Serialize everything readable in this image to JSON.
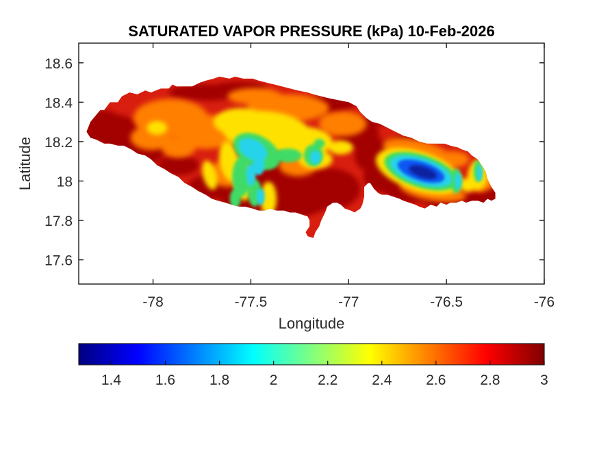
{
  "figure": {
    "title": "SATURATED VAPOR PRESSURE (kPa) 10-Feb-2026"
  },
  "chart_data": {
    "type": "heatmap",
    "subtype": "filled-contour-geographic-map",
    "region": "Jamaica",
    "units": "kPa",
    "xlabel": "Longitude",
    "ylabel": "Latitude",
    "x_range": [
      -78.38,
      -76.0
    ],
    "y_range": [
      17.477,
      18.7
    ],
    "x_ticks": [
      {
        "v": -78,
        "label": "-78"
      },
      {
        "v": -77.5,
        "label": "-77.5"
      },
      {
        "v": -77,
        "label": "-77"
      },
      {
        "v": -76.5,
        "label": "-76.5"
      },
      {
        "v": -76,
        "label": "-76"
      }
    ],
    "y_ticks": [
      {
        "v": 18.6,
        "label": "18.6"
      },
      {
        "v": 18.4,
        "label": "18.4"
      },
      {
        "v": 18.2,
        "label": "18.2"
      },
      {
        "v": 18,
        "label": "18"
      },
      {
        "v": 17.8,
        "label": "17.8"
      },
      {
        "v": 17.6,
        "label": "17.6"
      }
    ],
    "colorbar": {
      "orientation": "horizontal",
      "range": [
        1.28,
        3.0
      ],
      "colormap": "jet",
      "ticks": [
        {
          "v": 1.4,
          "label": "1.4"
        },
        {
          "v": 1.6,
          "label": "1.6"
        },
        {
          "v": 1.8,
          "label": "1.8"
        },
        {
          "v": 2,
          "label": "2"
        },
        {
          "v": 2.2,
          "label": "2.2"
        },
        {
          "v": 2.4,
          "label": "2.4"
        },
        {
          "v": 2.6,
          "label": "2.6"
        },
        {
          "v": 2.8,
          "label": "2.8"
        },
        {
          "v": 3,
          "label": "3"
        }
      ],
      "stops": [
        {
          "f": 0,
          "c": "#000080"
        },
        {
          "f": 0.125,
          "c": "#0000ff"
        },
        {
          "f": 0.25,
          "c": "#0080ff"
        },
        {
          "f": 0.375,
          "c": "#00ffff"
        },
        {
          "f": 0.5,
          "c": "#80ff80"
        },
        {
          "f": 0.625,
          "c": "#ffff00"
        },
        {
          "f": 0.75,
          "c": "#ff8000"
        },
        {
          "f": 0.875,
          "c": "#ff0000"
        },
        {
          "f": 1,
          "c": "#800000"
        }
      ]
    },
    "field_summary": {
      "high_values_kPa": "2.8-3.0 along most coasts and lowlands (dark red)",
      "low_value_kPa": "about 1.3 at the Blue Mountains near lon -76.6, lat 18.05 (dark blue core)",
      "mid_values": "2.0-2.4 (yellow-green) over the west-central interior uplands"
    },
    "base_color": "#d81e0f",
    "outline": [
      [
        -78.34,
        18.25
      ],
      [
        -78.32,
        18.3
      ],
      [
        -78.27,
        18.36
      ],
      [
        -78.25,
        18.36
      ],
      [
        -78.22,
        18.4
      ],
      [
        -78.18,
        18.4
      ],
      [
        -78.16,
        18.43
      ],
      [
        -78.12,
        18.45
      ],
      [
        -78.08,
        18.44
      ],
      [
        -78.04,
        18.46
      ],
      [
        -78.01,
        18.45
      ],
      [
        -77.96,
        18.47
      ],
      [
        -77.92,
        18.47
      ],
      [
        -77.9,
        18.49
      ],
      [
        -77.88,
        18.48
      ],
      [
        -77.84,
        18.48
      ],
      [
        -77.8,
        18.48
      ],
      [
        -77.76,
        18.5
      ],
      [
        -77.73,
        18.51
      ],
      [
        -77.69,
        18.52
      ],
      [
        -77.66,
        18.53
      ],
      [
        -77.61,
        18.52
      ],
      [
        -77.58,
        18.53
      ],
      [
        -77.54,
        18.52
      ],
      [
        -77.49,
        18.52
      ],
      [
        -77.46,
        18.51
      ],
      [
        -77.42,
        18.5
      ],
      [
        -77.38,
        18.49
      ],
      [
        -77.34,
        18.48
      ],
      [
        -77.3,
        18.47
      ],
      [
        -77.26,
        18.46
      ],
      [
        -77.21,
        18.45
      ],
      [
        -77.18,
        18.44
      ],
      [
        -77.14,
        18.43
      ],
      [
        -77.1,
        18.42
      ],
      [
        -77.05,
        18.41
      ],
      [
        -77.0,
        18.4
      ],
      [
        -76.96,
        18.38
      ],
      [
        -76.94,
        18.35
      ],
      [
        -76.91,
        18.32
      ],
      [
        -76.88,
        18.3
      ],
      [
        -76.84,
        18.29
      ],
      [
        -76.8,
        18.27
      ],
      [
        -76.76,
        18.25
      ],
      [
        -76.72,
        18.23
      ],
      [
        -76.68,
        18.22
      ],
      [
        -76.64,
        18.2
      ],
      [
        -76.6,
        18.19
      ],
      [
        -76.57,
        18.19
      ],
      [
        -76.54,
        18.19
      ],
      [
        -76.51,
        18.19
      ],
      [
        -76.48,
        18.18
      ],
      [
        -76.44,
        18.17
      ],
      [
        -76.42,
        18.16
      ],
      [
        -76.39,
        18.15
      ],
      [
        -76.37,
        18.13
      ],
      [
        -76.34,
        18.11
      ],
      [
        -76.32,
        18.08
      ],
      [
        -76.3,
        18.05
      ],
      [
        -76.29,
        18.01
      ],
      [
        -76.27,
        17.97
      ],
      [
        -76.25,
        17.94
      ],
      [
        -76.25,
        17.91
      ],
      [
        -76.27,
        17.9
      ],
      [
        -76.29,
        17.91
      ],
      [
        -76.31,
        17.89
      ],
      [
        -76.34,
        17.9
      ],
      [
        -76.37,
        17.9
      ],
      [
        -76.4,
        17.89
      ],
      [
        -76.42,
        17.9
      ],
      [
        -76.45,
        17.89
      ],
      [
        -76.48,
        17.89
      ],
      [
        -76.5,
        17.88
      ],
      [
        -76.53,
        17.89
      ],
      [
        -76.55,
        17.87
      ],
      [
        -76.58,
        17.88
      ],
      [
        -76.61,
        17.86
      ],
      [
        -76.64,
        17.87
      ],
      [
        -76.66,
        17.88
      ],
      [
        -76.69,
        17.89
      ],
      [
        -76.72,
        17.9
      ],
      [
        -76.74,
        17.91
      ],
      [
        -76.77,
        17.92
      ],
      [
        -76.8,
        17.93
      ],
      [
        -76.83,
        17.93
      ],
      [
        -76.85,
        17.94
      ],
      [
        -76.87,
        17.96
      ],
      [
        -76.89,
        17.99
      ],
      [
        -76.9,
        17.99
      ],
      [
        -76.92,
        17.97
      ],
      [
        -76.92,
        17.92
      ],
      [
        -76.93,
        17.88
      ],
      [
        -76.94,
        17.86
      ],
      [
        -76.97,
        17.84
      ],
      [
        -76.99,
        17.85
      ],
      [
        -77.02,
        17.86
      ],
      [
        -77.04,
        17.88
      ],
      [
        -77.06,
        17.89
      ],
      [
        -77.08,
        17.89
      ],
      [
        -77.11,
        17.87
      ],
      [
        -77.12,
        17.84
      ],
      [
        -77.14,
        17.8
      ],
      [
        -77.15,
        17.77
      ],
      [
        -77.17,
        17.74
      ],
      [
        -77.18,
        17.71
      ],
      [
        -77.21,
        17.72
      ],
      [
        -77.22,
        17.74
      ],
      [
        -77.2,
        17.77
      ],
      [
        -77.2,
        17.8
      ],
      [
        -77.21,
        17.82
      ],
      [
        -77.24,
        17.83
      ],
      [
        -77.27,
        17.84
      ],
      [
        -77.3,
        17.84
      ],
      [
        -77.33,
        17.85
      ],
      [
        -77.37,
        17.85
      ],
      [
        -77.4,
        17.86
      ],
      [
        -77.43,
        17.85
      ],
      [
        -77.46,
        17.85
      ],
      [
        -77.49,
        17.86
      ],
      [
        -77.53,
        17.87
      ],
      [
        -77.56,
        17.87
      ],
      [
        -77.6,
        17.88
      ],
      [
        -77.63,
        17.89
      ],
      [
        -77.67,
        17.9
      ],
      [
        -77.7,
        17.91
      ],
      [
        -77.73,
        17.93
      ],
      [
        -77.77,
        17.95
      ],
      [
        -77.8,
        17.97
      ],
      [
        -77.84,
        17.99
      ],
      [
        -77.87,
        18.02
      ],
      [
        -77.91,
        18.04
      ],
      [
        -77.94,
        18.06
      ],
      [
        -77.98,
        18.08
      ],
      [
        -78.01,
        18.11
      ],
      [
        -78.04,
        18.13
      ],
      [
        -78.08,
        18.14
      ],
      [
        -78.11,
        18.16
      ],
      [
        -78.15,
        18.18
      ],
      [
        -78.18,
        18.18
      ],
      [
        -78.22,
        18.19
      ],
      [
        -78.25,
        18.19
      ],
      [
        -78.29,
        18.21
      ],
      [
        -78.32,
        18.22
      ]
    ],
    "field_layers": [
      {
        "name": "dark-red",
        "color": "#a30000",
        "blur": 4,
        "blobs": [
          [
            -78.21,
            18.24,
            0.15,
            0.1,
            0
          ],
          [
            -78.26,
            18.31,
            0.09,
            0.05,
            0
          ],
          [
            -78.08,
            18.14,
            0.16,
            0.08,
            20
          ],
          [
            -77.73,
            18.45,
            0.19,
            0.042,
            0
          ],
          [
            -77.56,
            18.47,
            0.14,
            0.035,
            0
          ],
          [
            -77.1,
            18.39,
            0.16,
            0.05,
            10
          ],
          [
            -76.95,
            18.24,
            0.105,
            0.08,
            0
          ],
          [
            -76.87,
            18.13,
            0.1,
            0.09,
            0
          ],
          [
            -76.82,
            18.02,
            0.105,
            0.078,
            0
          ],
          [
            -77.31,
            17.95,
            0.245,
            0.14,
            0
          ],
          [
            -77.1,
            17.96,
            0.16,
            0.105,
            0
          ],
          [
            -77.52,
            17.92,
            0.14,
            0.07,
            0
          ],
          [
            -77.7,
            17.97,
            0.122,
            0.063,
            0
          ],
          [
            -77.87,
            18.08,
            0.105,
            0.052,
            0
          ],
          [
            -76.68,
            17.94,
            0.122,
            0.052,
            0
          ],
          [
            -76.51,
            17.9,
            0.105,
            0.042,
            0
          ],
          [
            -76.33,
            17.91,
            0.087,
            0.035,
            0
          ],
          [
            -76.74,
            17.97,
            0.105,
            0.049,
            0
          ],
          [
            -76.27,
            17.94,
            0.042,
            0.035,
            0
          ],
          [
            -76.68,
            18.21,
            0.14,
            0.038,
            15
          ],
          [
            -76.82,
            18.33,
            0.105,
            0.049,
            0
          ],
          [
            -77.3,
            18.07,
            0.112,
            0.056,
            -25
          ],
          [
            -77.19,
            18.0,
            0.087,
            0.049,
            0
          ]
        ]
      },
      {
        "name": "orange",
        "color": "#ff7f00",
        "blur": 4,
        "blobs": [
          [
            -77.91,
            18.32,
            0.19,
            0.097,
            0
          ],
          [
            -77.73,
            18.25,
            0.157,
            0.087,
            0
          ],
          [
            -78.01,
            18.22,
            0.105,
            0.063,
            0
          ],
          [
            -77.31,
            18.37,
            0.21,
            0.07,
            0
          ],
          [
            -77.48,
            18.43,
            0.14,
            0.042,
            0
          ],
          [
            -77.03,
            18.29,
            0.122,
            0.063,
            0
          ],
          [
            -77.62,
            18.04,
            0.087,
            0.07,
            0
          ],
          [
            -77.26,
            18.08,
            0.098,
            0.056,
            0
          ],
          [
            -76.64,
            18.14,
            0.19,
            0.065,
            -15
          ],
          [
            -76.57,
            17.95,
            0.17,
            0.05,
            -10
          ],
          [
            -76.32,
            18.01,
            0.07,
            0.063,
            0
          ],
          [
            -76.47,
            18.11,
            0.087,
            0.042,
            0
          ],
          [
            -77.87,
            18.17,
            0.087,
            0.052,
            0
          ]
        ]
      },
      {
        "name": "yellow",
        "color": "#ffe100",
        "blur": 3.5,
        "blobs": [
          [
            -77.42,
            18.25,
            0.227,
            0.104,
            -5
          ],
          [
            -77.55,
            18.3,
            0.14,
            0.07,
            0
          ],
          [
            -77.24,
            18.2,
            0.157,
            0.076,
            0
          ],
          [
            -77.61,
            18.1,
            0.049,
            0.104,
            10
          ],
          [
            -77.54,
            18.01,
            0.05,
            0.11,
            5
          ],
          [
            -77.71,
            18.03,
            0.035,
            0.076,
            15
          ],
          [
            -77.41,
            17.91,
            0.042,
            0.087,
            0
          ],
          [
            -77.17,
            18.11,
            0.087,
            0.049,
            0
          ],
          [
            -77.98,
            18.27,
            0.052,
            0.035,
            0
          ],
          [
            -76.64,
            18.05,
            0.23,
            0.1,
            -18
          ],
          [
            -76.34,
            18.03,
            0.049,
            0.076,
            0
          ],
          [
            -76.39,
            17.98,
            0.042,
            0.035,
            0
          ],
          [
            -77.04,
            18.17,
            0.063,
            0.035,
            0
          ]
        ]
      },
      {
        "name": "green",
        "color": "#3fdb66",
        "blur": 2.5,
        "blobs": [
          [
            -77.47,
            18.15,
            0.13,
            0.08,
            -30
          ],
          [
            -77.55,
            18.02,
            0.045,
            0.1,
            0
          ],
          [
            -77.48,
            17.94,
            0.035,
            0.07,
            0
          ],
          [
            -77.58,
            17.91,
            0.028,
            0.049,
            0
          ],
          [
            -77.31,
            18.13,
            0.07,
            0.035,
            0
          ],
          [
            -76.63,
            18.05,
            0.195,
            0.082,
            -18
          ],
          [
            -76.45,
            18.0,
            0.028,
            0.063,
            0
          ],
          [
            -76.34,
            18.05,
            0.021,
            0.056,
            0
          ],
          [
            -77.18,
            18.13,
            0.049,
            0.056,
            0
          ],
          [
            -77.15,
            18.19,
            0.028,
            0.024,
            0
          ]
        ]
      },
      {
        "name": "cyan",
        "color": "#27d3ea",
        "blur": 2.2,
        "blobs": [
          [
            -77.49,
            18.16,
            0.08,
            0.05,
            -30
          ],
          [
            -77.5,
            18.03,
            0.024,
            0.056,
            0
          ],
          [
            -77.46,
            18.08,
            0.03,
            0.05,
            0
          ],
          [
            -77.45,
            17.92,
            0.021,
            0.042,
            0
          ],
          [
            -77.17,
            18.12,
            0.028,
            0.035,
            0
          ],
          [
            -76.63,
            18.05,
            0.165,
            0.066,
            -18
          ],
          [
            -76.33,
            18.04,
            0.014,
            0.042,
            0
          ],
          [
            -76.44,
            18.0,
            0.017,
            0.042,
            0
          ]
        ]
      },
      {
        "name": "blue",
        "color": "#1156f2",
        "blur": 2.2,
        "blobs": [
          [
            -76.63,
            18.05,
            0.125,
            0.048,
            -18
          ]
        ]
      },
      {
        "name": "dark-blue",
        "color": "#0a22a0",
        "blur": 2,
        "blobs": [
          [
            -76.62,
            18.045,
            0.075,
            0.028,
            -18
          ]
        ]
      }
    ],
    "axis_color": "#1a1a1a",
    "text_color": "#2b2b2b"
  }
}
